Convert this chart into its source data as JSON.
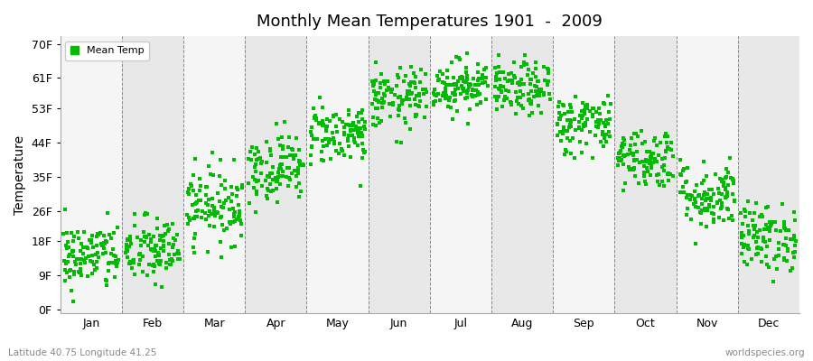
{
  "title": "Monthly Mean Temperatures 1901  -  2009",
  "ylabel": "Temperature",
  "xlabel_labels": [
    "Jan",
    "Feb",
    "Mar",
    "Apr",
    "May",
    "Jun",
    "Jul",
    "Aug",
    "Sep",
    "Oct",
    "Nov",
    "Dec"
  ],
  "ytick_labels": [
    "0F",
    "9F",
    "18F",
    "26F",
    "35F",
    "44F",
    "53F",
    "61F",
    "70F"
  ],
  "ytick_values": [
    0,
    9,
    18,
    26,
    35,
    44,
    53,
    61,
    70
  ],
  "ylim": [
    -1,
    72
  ],
  "bottom_left": "Latitude 40.75 Longitude 41.25",
  "bottom_right": "worldspecies.org",
  "legend_label": "Mean Temp",
  "dot_color": "#00bb00",
  "bg_color_light": "#f5f5f5",
  "bg_color_dark": "#e8e8e8",
  "monthly_means": [
    14.0,
    15.5,
    27.5,
    37.5,
    46.5,
    55.5,
    59.0,
    58.0,
    49.0,
    40.0,
    30.0,
    19.0
  ],
  "monthly_stds": [
    4.5,
    4.5,
    5.0,
    4.5,
    4.0,
    4.0,
    3.5,
    3.5,
    4.0,
    4.0,
    4.5,
    4.5
  ],
  "n_years": 109,
  "seed": 42,
  "dot_size": 5,
  "figsize": [
    9.0,
    4.0
  ],
  "dpi": 100
}
